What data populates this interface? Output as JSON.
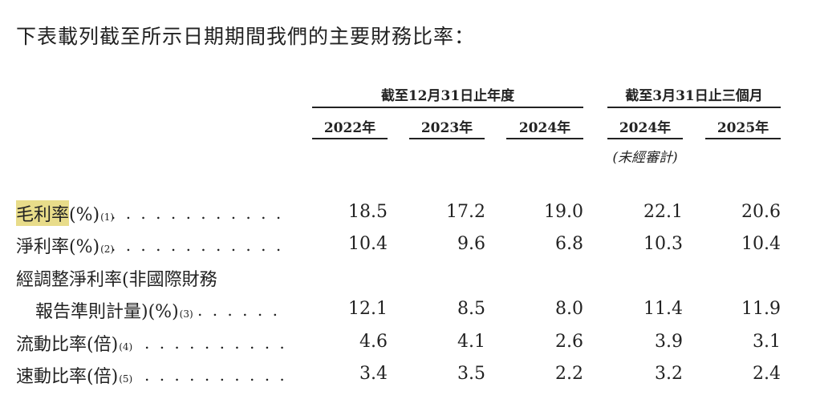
{
  "intro": "下表載列截至所示日期期間我們的主要財務比率：",
  "groups": {
    "annual": "截至12月31日止年度",
    "quarterly": "截至3月31日止三個月"
  },
  "columns": [
    "2022年",
    "2023年",
    "2024年",
    "2024年",
    "2025年"
  ],
  "unaudited_note": "(未經審計)",
  "rows": [
    {
      "label": "毛利率",
      "label_suffix": "(%)",
      "note": "(1)",
      "values": [
        "18.5",
        "17.2",
        "19.0",
        "22.1",
        "20.6"
      ]
    },
    {
      "label": "淨利率",
      "label_suffix": "(%)",
      "note": "(2)",
      "values": [
        "10.4",
        "9.6",
        "6.8",
        "10.3",
        "10.4"
      ]
    },
    {
      "label": "經調整淨利率(非國際財務",
      "label_cont": "報告準則計量)(%)",
      "note": "(3)",
      "values": [
        "12.1",
        "8.5",
        "8.0",
        "11.4",
        "11.9"
      ]
    },
    {
      "label": "流動比率",
      "label_suffix": "(倍)",
      "note": "(4)",
      "values": [
        "4.6",
        "4.1",
        "2.6",
        "3.9",
        "3.1"
      ]
    },
    {
      "label": "速動比率",
      "label_suffix": "(倍)",
      "note": "(5)",
      "values": [
        "3.4",
        "3.5",
        "2.2",
        "3.2",
        "2.4"
      ]
    }
  ],
  "leader_dots": ". . . . . . . . . . . . . . . . . . . . . . . . . . . . . . . . . . . . . . . ."
}
